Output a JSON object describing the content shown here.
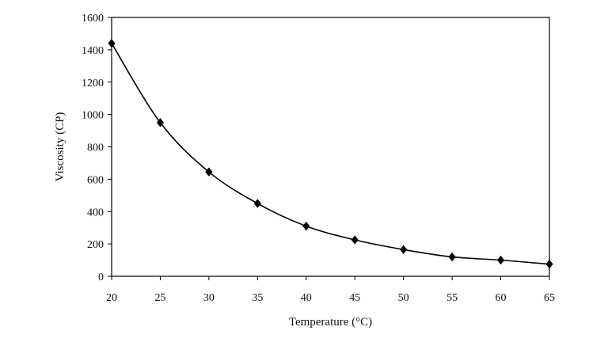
{
  "chart_data": {
    "type": "line",
    "title": "",
    "xlabel": "Temperature (°C)",
    "ylabel": "Viscosity (CP)",
    "xlim": [
      20,
      65
    ],
    "ylim": [
      0,
      1600
    ],
    "x_ticks": [
      "20",
      "25",
      "30",
      "35",
      "40",
      "45",
      "50",
      "55",
      "60",
      "65"
    ],
    "y_ticks": [
      "0",
      "200",
      "400",
      "600",
      "800",
      "1000",
      "1200",
      "1400",
      "1600"
    ],
    "grid": false,
    "legend": "none",
    "series": [
      {
        "marker": "diamond",
        "color": "#000000",
        "x": [
          20,
          25,
          30,
          35,
          40,
          45,
          50,
          55,
          60,
          65
        ],
        "y": [
          1440,
          950,
          645,
          450,
          310,
          225,
          165,
          120,
          100,
          75
        ]
      }
    ]
  }
}
